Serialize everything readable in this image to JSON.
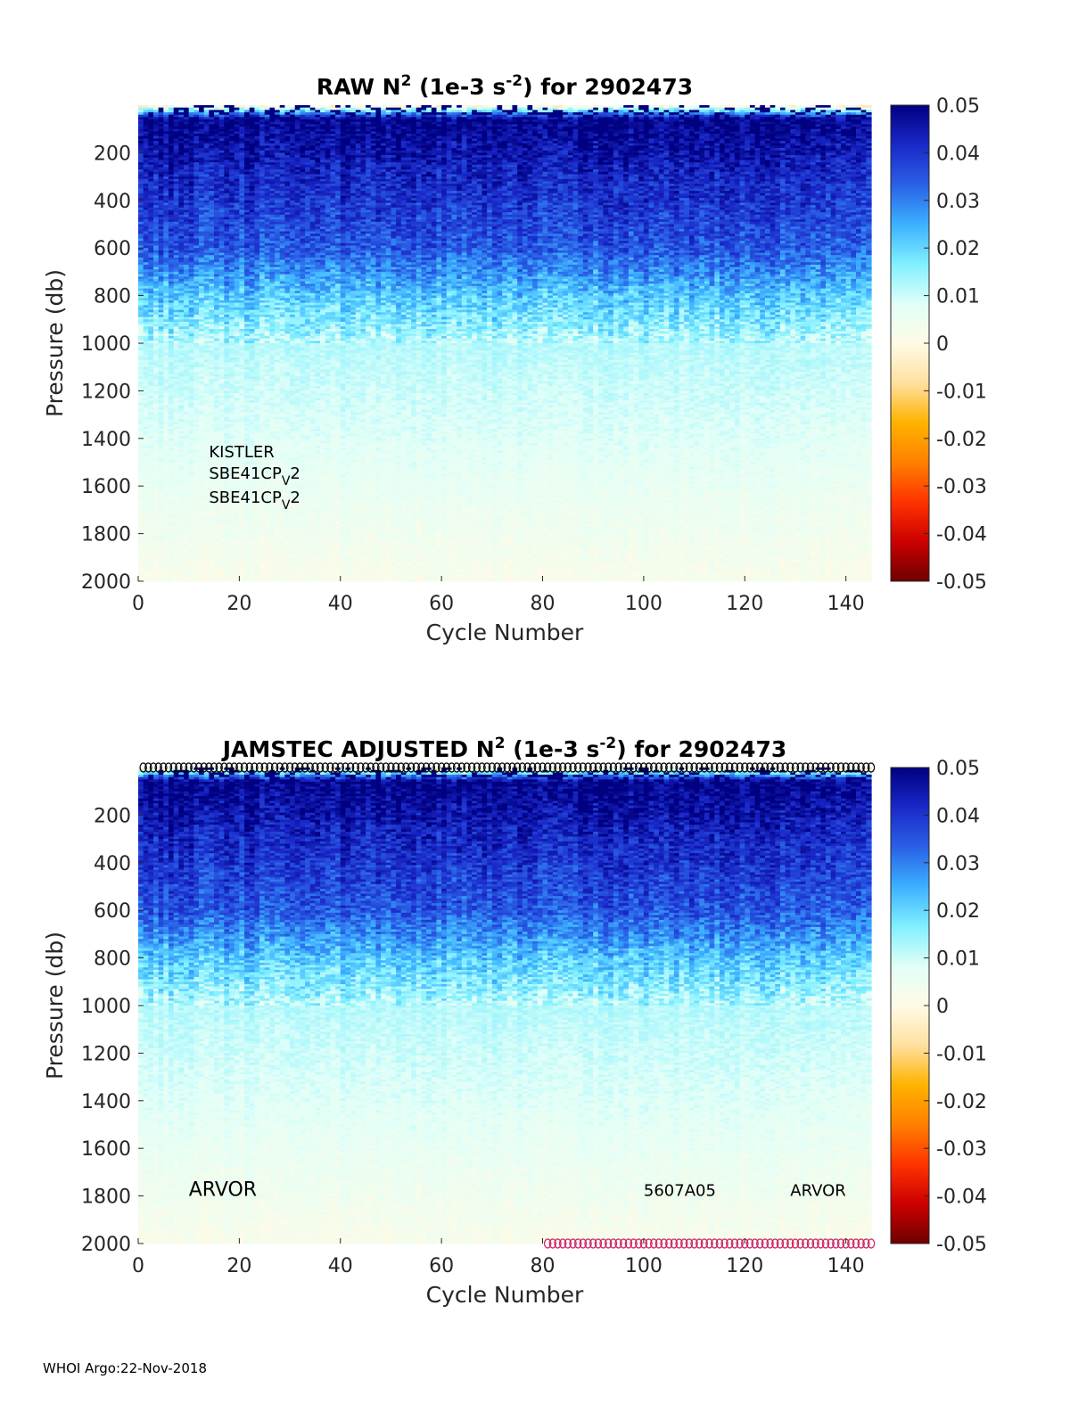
{
  "footer": "WHOI Argo:22-Nov-2018",
  "colorbar": {
    "min": -0.05,
    "max": 0.05,
    "ticks": [
      "0.05",
      "0.04",
      "0.03",
      "0.02",
      "0.01",
      "0",
      "-0.01",
      "-0.02",
      "-0.03",
      "-0.04",
      "-0.05"
    ],
    "colormap": [
      "#6e0000",
      "#cc0000",
      "#ff3300",
      "#ff8000",
      "#ffb300",
      "#ffe0a0",
      "#fffbe6",
      "#e0fff8",
      "#80f0ff",
      "#3cb0ff",
      "#2a60e6",
      "#1a28c8",
      "#000080"
    ]
  },
  "chart_data": [
    {
      "type": "heatmap",
      "title": "RAW N² (1e-3 s⁻²) for 2902473",
      "title_parts": {
        "pre": "RAW N",
        "sup1": "2",
        "mid": " (1e-3 s",
        "sup2": "-2",
        "post": ") for 2902473"
      },
      "xlabel": "Cycle Number",
      "ylabel": "Pressure (db)",
      "xlim": [
        0,
        145
      ],
      "ylim": [
        2000,
        0
      ],
      "xticks": [
        "0",
        "20",
        "40",
        "60",
        "80",
        "100",
        "120",
        "140"
      ],
      "yticks": [
        "200",
        "400",
        "600",
        "800",
        "1000",
        "1200",
        "1400",
        "1600",
        "1800",
        "2000"
      ],
      "clim": [
        -0.05,
        0.05
      ],
      "annotations": [
        {
          "label": "KISTLER",
          "cycle": 14,
          "pressure": 1480
        },
        {
          "label": "SBE41CP",
          "sub": "V",
          "suffix": "2",
          "cycle": 14,
          "pressure": 1570
        },
        {
          "label": "SBE41CP",
          "sub": "V",
          "suffix": "2",
          "cycle": 14,
          "pressure": 1670
        }
      ],
      "field_profile": [
        {
          "pressure": 0,
          "value": -0.002
        },
        {
          "pressure": 60,
          "value": 0.05
        },
        {
          "pressure": 300,
          "value": 0.042
        },
        {
          "pressure": 600,
          "value": 0.035
        },
        {
          "pressure": 800,
          "value": 0.022
        },
        {
          "pressure": 1000,
          "value": 0.012
        },
        {
          "pressure": 1400,
          "value": 0.008
        },
        {
          "pressure": 2000,
          "value": 0.002
        }
      ]
    },
    {
      "type": "heatmap",
      "title": "JAMSTEC ADJUSTED N² (1e-3 s⁻²) for 2902473",
      "title_parts": {
        "pre": "JAMSTEC  ADJUSTED N",
        "sup1": "2",
        "mid": " (1e-3 s",
        "sup2": "-2",
        "post": ") for 2902473"
      },
      "xlabel": "Cycle Number",
      "ylabel": "Pressure (db)",
      "xlim": [
        0,
        145
      ],
      "ylim": [
        2000,
        0
      ],
      "xticks": [
        "0",
        "20",
        "40",
        "60",
        "80",
        "100",
        "120",
        "140"
      ],
      "yticks": [
        "200",
        "400",
        "600",
        "800",
        "1000",
        "1200",
        "1400",
        "1600",
        "1800",
        "2000"
      ],
      "clim": [
        -0.05,
        0.05
      ],
      "annotations": [
        {
          "label": "ARVOR",
          "cycle": 10,
          "pressure": 1800,
          "size": "large"
        },
        {
          "label": "5607A05",
          "cycle": 100,
          "pressure": 1800
        },
        {
          "label": "ARVOR",
          "cycle": 129,
          "pressure": 1800
        }
      ],
      "markers": [
        {
          "name": "top-markers",
          "color": "#000000",
          "pressure": 0,
          "cycle_start": 1,
          "cycle_end": 145
        },
        {
          "name": "bottom-markers",
          "color": "#cc2266",
          "pressure": 2000,
          "cycle_start": 81,
          "cycle_end": 145
        }
      ],
      "field_profile": [
        {
          "pressure": 0,
          "value": -0.002
        },
        {
          "pressure": 60,
          "value": 0.05
        },
        {
          "pressure": 300,
          "value": 0.042
        },
        {
          "pressure": 600,
          "value": 0.035
        },
        {
          "pressure": 800,
          "value": 0.022
        },
        {
          "pressure": 1000,
          "value": 0.012
        },
        {
          "pressure": 1400,
          "value": 0.008
        },
        {
          "pressure": 2000,
          "value": 0.002
        }
      ]
    }
  ]
}
